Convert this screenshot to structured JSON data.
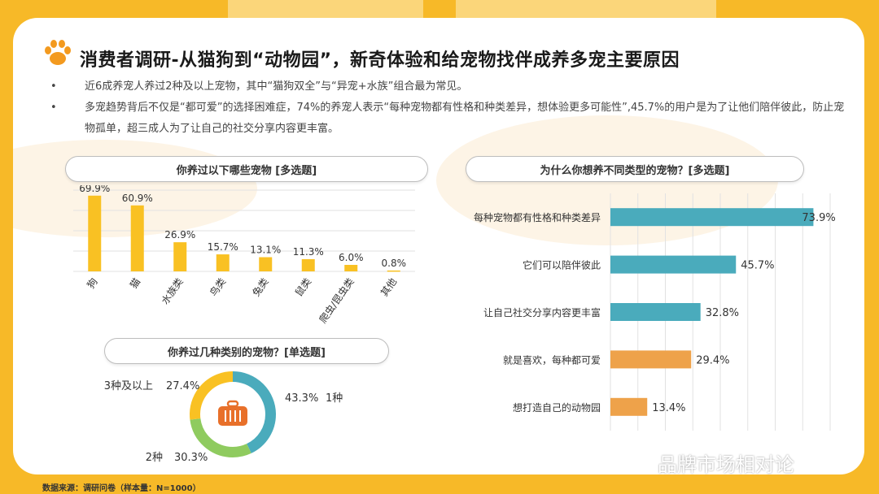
{
  "title": "消费者调研-从猫狗到“动物园”，新奇体验和给宠物找伴成养多宠主要原因",
  "bullets": [
    "近6成养宠人养过2种及以上宠物，其中“猫狗双全”与“异宠+水族”组合最为常见。",
    "多宠趋势背后不仅是“都可爱”的选择困难症，74%的养宠人表示“每种宠物都有性格和种类差异，想体验更多可能性”,45.7%的用户是为了让他们陪伴彼此，防止宠物孤单，超三成人为了让自己的社交分享内容更丰富。"
  ],
  "source": "数据来源：调研问卷（样本量：N=1000）",
  "watermark": "品牌市场相对论",
  "colors": {
    "frame": "#f7b928",
    "bar_yellow": "#f9c123",
    "bar_teal": "#4aabbc",
    "bar_orange": "#eea24a",
    "ring_teal": "#4aabbc",
    "ring_green": "#8fcb5f",
    "ring_yellow": "#f9c123",
    "icon": "#e8702a"
  },
  "chart_data": [
    {
      "type": "bar",
      "title": "你养过以下哪些宠物 [多选题]",
      "categories": [
        "狗",
        "猫",
        "水族类",
        "鸟类",
        "兔类",
        "鼠类",
        "爬虫/昆虫类",
        "其他"
      ],
      "values": [
        69.9,
        60.9,
        26.9,
        15.7,
        13.1,
        11.3,
        6.0,
        0.8
      ],
      "labels": [
        "69.9%",
        "60.9%",
        "26.9%",
        "15.7%",
        "13.1%",
        "11.3%",
        "6.0%",
        "0.8%"
      ],
      "ylim": [
        0,
        75
      ],
      "grid": true
    },
    {
      "type": "bar",
      "orientation": "horizontal",
      "title": "为什么你想养不同类型的宠物？[多选题]",
      "categories": [
        "每种宠物都有性格和种类差异",
        "它们可以陪伴彼此",
        "让自己社交分享内容更丰富",
        "就是喜欢，每种都可爱",
        "想打造自己的动物园"
      ],
      "values": [
        73.9,
        45.7,
        32.8,
        29.4,
        13.4
      ],
      "labels": [
        "73.9%",
        "45.7%",
        "32.8%",
        "29.4%",
        "13.4%"
      ],
      "xlim": [
        0,
        80
      ],
      "grid": true
    },
    {
      "type": "pie",
      "donut": true,
      "title": "你养过几种类别的宠物？[单选题]",
      "slices": [
        {
          "name": "1种",
          "value": 43.3,
          "label": "43.3%"
        },
        {
          "name": "2种",
          "value": 30.3,
          "label": "30.3%"
        },
        {
          "name": "3种及以上",
          "value": 27.4,
          "label": "27.4%"
        }
      ]
    }
  ]
}
